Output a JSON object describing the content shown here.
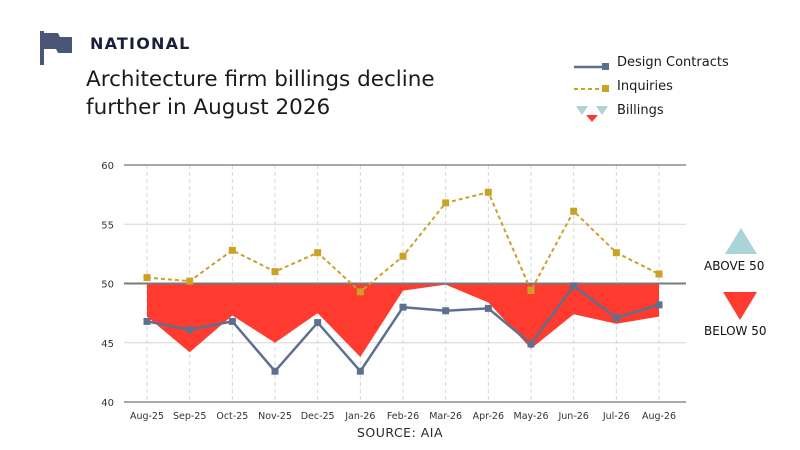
{
  "header": {
    "section_label": "NATIONAL",
    "title": "Architecture firm billings decline further in August 2026",
    "source": "SOURCE: AIA"
  },
  "legend": {
    "items": [
      {
        "label": "Design Contracts",
        "color": "#5f6f8e"
      },
      {
        "label": "Inquiries",
        "color": "#c9a227"
      },
      {
        "label": "Billings",
        "color": "#ff3b2f"
      }
    ]
  },
  "side_legend": {
    "above_label": "ABOVE 50",
    "below_label": "BELOW 50",
    "above_color": "#a9d5d8",
    "below_color": "#ff3b2f"
  },
  "colors": {
    "flag": "#4a5677",
    "billings_fill": "#ff3b2f",
    "above_fill": "#a9d5d8",
    "inquiries_line": "#c9a227",
    "contracts_line": "#5f6f8e",
    "grid": "#d6d6d6",
    "frame": "#8c8c8c"
  },
  "chart_data": {
    "type": "line",
    "categories": [
      "Aug-25",
      "Sep-25",
      "Oct-25",
      "Nov-25",
      "Dec-25",
      "Jan-26",
      "Feb-26",
      "Mar-26",
      "Apr-26",
      "May-26",
      "Jun-26",
      "Jul-26",
      "Aug-26"
    ],
    "ylim": [
      40,
      60
    ],
    "y_ticks": [
      40,
      45,
      50,
      55,
      60
    ],
    "baseline": 50,
    "grid": true,
    "series": [
      {
        "name": "Design Contracts",
        "style": "solid-square-markers",
        "values": [
          46.8,
          46.1,
          46.8,
          42.6,
          46.7,
          42.6,
          48.0,
          47.7,
          47.9,
          44.9,
          49.8,
          47.1,
          48.2
        ]
      },
      {
        "name": "Inquiries",
        "style": "dashed-square-markers",
        "values": [
          50.5,
          50.2,
          52.8,
          51.0,
          52.6,
          49.3,
          52.3,
          56.8,
          57.7,
          49.4,
          56.1,
          52.6,
          50.8
        ]
      },
      {
        "name": "Billings",
        "style": "area-relative-to-50",
        "values": [
          47.2,
          44.2,
          47.3,
          45.0,
          47.5,
          43.8,
          49.4,
          49.9,
          48.4,
          44.5,
          47.4,
          46.6,
          47.2
        ]
      }
    ]
  }
}
